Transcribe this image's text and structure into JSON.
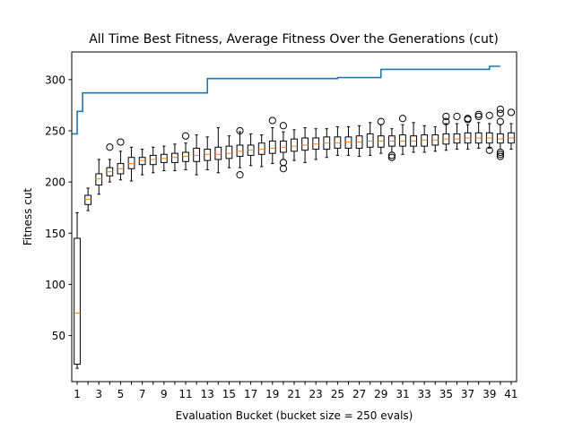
{
  "chart_data": {
    "type": "box",
    "title": "All Time Best Fitness, Average Fitness Over the Generations (cut)",
    "xlabel": "Evaluation Bucket (bucket size = 250 evals)",
    "ylabel": "Fitness cut",
    "xlim": [
      0.5,
      41.5
    ],
    "ylim": [
      5,
      327
    ],
    "xticks": [
      1,
      3,
      5,
      7,
      9,
      11,
      13,
      15,
      17,
      19,
      21,
      23,
      25,
      27,
      29,
      31,
      33,
      35,
      37,
      39,
      41
    ],
    "yticks": [
      50,
      100,
      150,
      200,
      250,
      300
    ],
    "grid": false,
    "colors": {
      "best_line": "#1f77b4",
      "median": "#ff7f0e",
      "box": "#000000"
    },
    "series": [
      {
        "name": "",
        "type": "step",
        "x": [
          0.5,
          1,
          1.5,
          2,
          2.5,
          13,
          25,
          29,
          39,
          40
        ],
        "y": [
          247,
          269,
          287,
          287,
          287,
          301,
          302,
          310,
          313,
          313
        ]
      }
    ],
    "boxes": [
      {
        "x": 1,
        "whislo": 18,
        "q1": 22,
        "med": 72,
        "q3": 145,
        "whishi": 170,
        "fliers": []
      },
      {
        "x": 2,
        "whislo": 172,
        "q1": 178,
        "med": 183,
        "q3": 187,
        "whishi": 194,
        "fliers": []
      },
      {
        "x": 3,
        "whislo": 188,
        "q1": 197,
        "med": 203,
        "q3": 208,
        "whishi": 222,
        "fliers": []
      },
      {
        "x": 4,
        "whislo": 200,
        "q1": 206,
        "med": 210,
        "q3": 214,
        "whishi": 222,
        "fliers": [
          234
        ]
      },
      {
        "x": 5,
        "whislo": 202,
        "q1": 208,
        "med": 213,
        "q3": 218,
        "whishi": 230,
        "fliers": [
          239
        ]
      },
      {
        "x": 6,
        "whislo": 201,
        "q1": 213,
        "med": 218,
        "q3": 224,
        "whishi": 234,
        "fliers": []
      },
      {
        "x": 7,
        "whislo": 207,
        "q1": 217,
        "med": 221,
        "q3": 224,
        "whishi": 232,
        "fliers": []
      },
      {
        "x": 8,
        "whislo": 209,
        "q1": 217,
        "med": 222,
        "q3": 226,
        "whishi": 234,
        "fliers": []
      },
      {
        "x": 9,
        "whislo": 211,
        "q1": 219,
        "med": 223,
        "q3": 227,
        "whishi": 235,
        "fliers": []
      },
      {
        "x": 10,
        "whislo": 211,
        "q1": 219,
        "med": 224,
        "q3": 228,
        "whishi": 237,
        "fliers": []
      },
      {
        "x": 11,
        "whislo": 212,
        "q1": 220,
        "med": 225,
        "q3": 229,
        "whishi": 238,
        "fliers": [
          245
        ]
      },
      {
        "x": 12,
        "whislo": 207,
        "q1": 220,
        "med": 226,
        "q3": 233,
        "whishi": 246,
        "fliers": []
      },
      {
        "x": 13,
        "whislo": 212,
        "q1": 221,
        "med": 227,
        "q3": 232,
        "whishi": 244,
        "fliers": []
      },
      {
        "x": 14,
        "whislo": 209,
        "q1": 222,
        "med": 227,
        "q3": 234,
        "whishi": 253,
        "fliers": []
      },
      {
        "x": 15,
        "whislo": 214,
        "q1": 223,
        "med": 228,
        "q3": 235,
        "whishi": 245,
        "fliers": []
      },
      {
        "x": 16,
        "whislo": 214,
        "q1": 225,
        "med": 230,
        "q3": 236,
        "whishi": 249,
        "fliers": [
          250,
          207
        ]
      },
      {
        "x": 17,
        "whislo": 216,
        "q1": 226,
        "med": 231,
        "q3": 236,
        "whishi": 247,
        "fliers": []
      },
      {
        "x": 18,
        "whislo": 215,
        "q1": 227,
        "med": 232,
        "q3": 238,
        "whishi": 246,
        "fliers": []
      },
      {
        "x": 19,
        "whislo": 218,
        "q1": 228,
        "med": 233,
        "q3": 240,
        "whishi": 253,
        "fliers": [
          260
        ]
      },
      {
        "x": 20,
        "whislo": 222,
        "q1": 229,
        "med": 234,
        "q3": 240,
        "whishi": 249,
        "fliers": [
          255,
          219,
          213
        ]
      },
      {
        "x": 21,
        "whislo": 221,
        "q1": 230,
        "med": 235,
        "q3": 242,
        "whishi": 251,
        "fliers": []
      },
      {
        "x": 22,
        "whislo": 219,
        "q1": 231,
        "med": 236,
        "q3": 243,
        "whishi": 253,
        "fliers": []
      },
      {
        "x": 23,
        "whislo": 222,
        "q1": 232,
        "med": 237,
        "q3": 243,
        "whishi": 252,
        "fliers": []
      },
      {
        "x": 24,
        "whislo": 224,
        "q1": 232,
        "med": 238,
        "q3": 244,
        "whishi": 252,
        "fliers": []
      },
      {
        "x": 25,
        "whislo": 226,
        "q1": 233,
        "med": 238,
        "q3": 244,
        "whishi": 254,
        "fliers": []
      },
      {
        "x": 26,
        "whislo": 226,
        "q1": 233,
        "med": 239,
        "q3": 244,
        "whishi": 254,
        "fliers": []
      },
      {
        "x": 27,
        "whislo": 225,
        "q1": 233,
        "med": 239,
        "q3": 245,
        "whishi": 255,
        "fliers": []
      },
      {
        "x": 28,
        "whislo": 226,
        "q1": 234,
        "med": 240,
        "q3": 247,
        "whishi": 258,
        "fliers": []
      },
      {
        "x": 29,
        "whislo": 228,
        "q1": 234,
        "med": 240,
        "q3": 245,
        "whishi": 256,
        "fliers": [
          259
        ]
      },
      {
        "x": 30,
        "whislo": 229,
        "q1": 235,
        "med": 240,
        "q3": 245,
        "whishi": 252,
        "fliers": [
          226,
          224
        ]
      },
      {
        "x": 31,
        "whislo": 227,
        "q1": 235,
        "med": 240,
        "q3": 246,
        "whishi": 256,
        "fliers": [
          262
        ]
      },
      {
        "x": 32,
        "whislo": 229,
        "q1": 235,
        "med": 240,
        "q3": 245,
        "whishi": 258,
        "fliers": []
      },
      {
        "x": 33,
        "whislo": 229,
        "q1": 235,
        "med": 241,
        "q3": 246,
        "whishi": 255,
        "fliers": []
      },
      {
        "x": 34,
        "whislo": 230,
        "q1": 236,
        "med": 241,
        "q3": 246,
        "whishi": 254,
        "fliers": []
      },
      {
        "x": 35,
        "whislo": 231,
        "q1": 237,
        "med": 242,
        "q3": 247,
        "whishi": 257,
        "fliers": [
          264,
          259
        ]
      },
      {
        "x": 36,
        "whislo": 232,
        "q1": 238,
        "med": 242,
        "q3": 247,
        "whishi": 257,
        "fliers": [
          264
        ]
      },
      {
        "x": 37,
        "whislo": 232,
        "q1": 238,
        "med": 243,
        "q3": 248,
        "whishi": 256,
        "fliers": [
          262,
          261
        ]
      },
      {
        "x": 38,
        "whislo": 233,
        "q1": 238,
        "med": 243,
        "q3": 248,
        "whishi": 258,
        "fliers": [
          266,
          264
        ]
      },
      {
        "x": 39,
        "whislo": 233,
        "q1": 238,
        "med": 243,
        "q3": 248,
        "whishi": 257,
        "fliers": [
          265,
          231
        ]
      },
      {
        "x": 40,
        "whislo": 232,
        "q1": 238,
        "med": 242,
        "q3": 247,
        "whishi": 256,
        "fliers": [
          271,
          267,
          259,
          229,
          227,
          225
        ]
      },
      {
        "x": 41,
        "whislo": 232,
        "q1": 238,
        "med": 243,
        "q3": 248,
        "whishi": 257,
        "fliers": [
          268
        ]
      }
    ]
  }
}
